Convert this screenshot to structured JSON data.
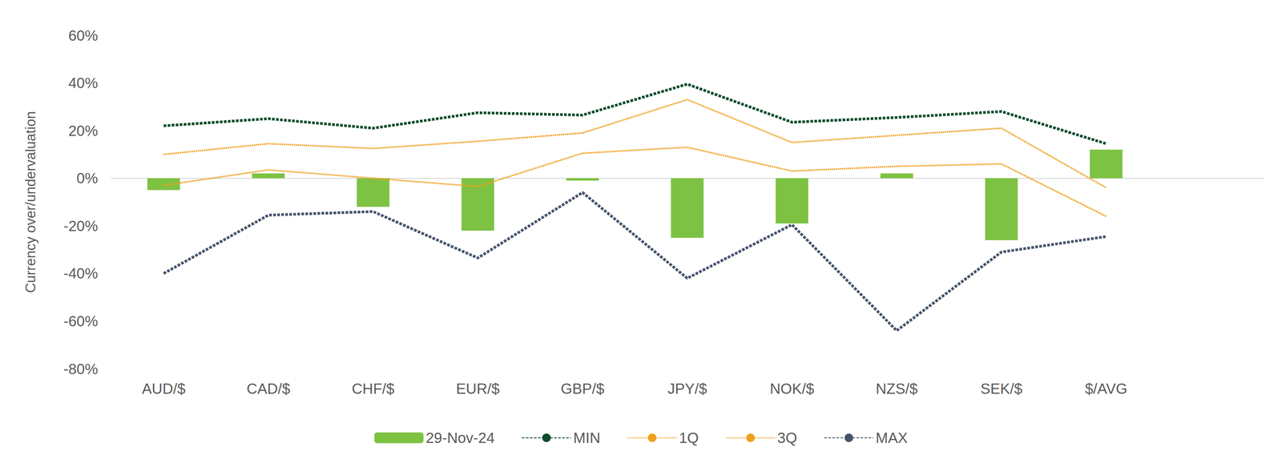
{
  "chart_data": {
    "type": "bar",
    "y_label": "Currency over/undervaluation",
    "categories": [
      "AUD/$",
      "CAD/$",
      "CHF/$",
      "EUR/$",
      "GBP/$",
      "JPY/$",
      "NOK/$",
      "NZS/$",
      "SEK/$",
      "$/AVG",
      null
    ],
    "series": [
      {
        "name": "29-Nov-24",
        "type": "bar",
        "color": "#7dc242",
        "values": [
          -5,
          2,
          -12,
          -22,
          -1,
          -25,
          -19,
          2,
          -26,
          12,
          null
        ]
      },
      {
        "name": "MIN",
        "type": "line",
        "color": "#0b4d2c",
        "line_style": "dashed",
        "values": [
          22,
          25,
          21,
          27.5,
          26.5,
          39.5,
          23.5,
          25.5,
          28,
          14.5,
          null
        ]
      },
      {
        "name": "1Q",
        "type": "line",
        "color": "#f0a01e",
        "line_style": "dotted",
        "values": [
          10,
          14.5,
          12.5,
          15.5,
          19,
          33,
          15,
          18,
          21,
          -4,
          null
        ]
      },
      {
        "name": "3Q",
        "type": "line",
        "color": "#f0a01e",
        "line_style": "dotted",
        "values": [
          -3,
          3.5,
          0,
          -3.5,
          10.5,
          13,
          3,
          5,
          6,
          -16,
          null
        ]
      },
      {
        "name": "MAX",
        "type": "line",
        "color": "#44546a",
        "line_style": "dashed",
        "values": [
          -40,
          -15.5,
          -14,
          -33.5,
          -6,
          -42,
          -19.5,
          -64,
          -31,
          -24.5,
          null
        ]
      }
    ],
    "ylim": [
      -80,
      60
    ],
    "yticks": [
      {
        "value": -80,
        "label": "-80%"
      },
      {
        "value": -60,
        "label": "-60%"
      },
      {
        "value": -40,
        "label": "-40%"
      },
      {
        "value": -20,
        "label": "-20%"
      },
      {
        "value": 0,
        "label": "0%"
      },
      {
        "value": 20,
        "label": "20%"
      },
      {
        "value": 40,
        "label": "40%"
      },
      {
        "value": 60,
        "label": "60%"
      }
    ],
    "grid": false,
    "legend": "bottom"
  }
}
